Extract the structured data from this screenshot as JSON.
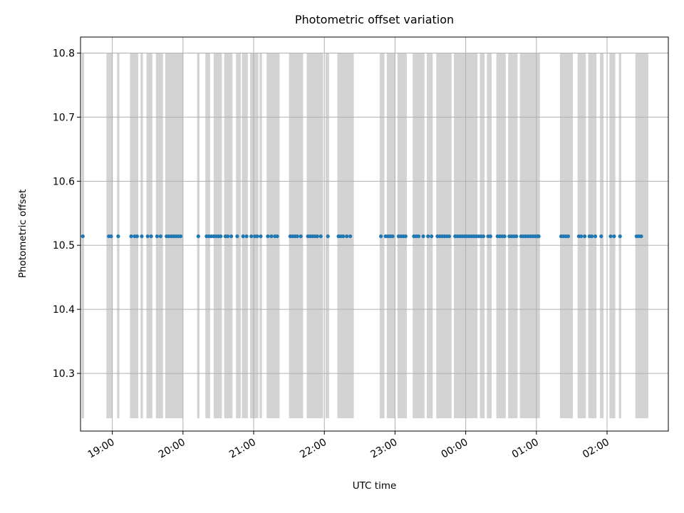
{
  "chart_data": {
    "type": "scatter",
    "title": "Photometric offset variation",
    "xlabel": "UTC time",
    "ylabel": "Photometric offset",
    "x_range": [
      "18:33",
      "02:52"
    ],
    "ylim": [
      10.21,
      10.825
    ],
    "y_ticks": [
      10.3,
      10.4,
      10.5,
      10.6,
      10.7,
      10.8
    ],
    "x_ticks": [
      "19:00",
      "20:00",
      "21:00",
      "22:00",
      "23:00",
      "00:00",
      "01:00",
      "02:00"
    ],
    "grid": true,
    "colors": {
      "points": "#1f77b4",
      "bands": "#d3d3d3",
      "grid": "#b0b0b0"
    },
    "shaded_intervals": {
      "y_range": [
        10.23,
        10.8
      ],
      "ranges": [
        [
          "18:34",
          "18:36"
        ],
        [
          "18:55",
          "19:00"
        ],
        [
          "19:04",
          "19:06"
        ],
        [
          "19:15",
          "19:22"
        ],
        [
          "19:24",
          "19:26"
        ],
        [
          "19:29",
          "19:34"
        ],
        [
          "19:37",
          "19:43"
        ],
        [
          "19:45",
          "20:00"
        ],
        [
          "20:12",
          "20:14"
        ],
        [
          "20:19",
          "20:23"
        ],
        [
          "20:26",
          "20:33"
        ],
        [
          "20:35",
          "20:42"
        ],
        [
          "20:45",
          "20:49"
        ],
        [
          "20:50",
          "20:55"
        ],
        [
          "20:57",
          "21:04"
        ],
        [
          "21:05",
          "21:07"
        ],
        [
          "21:11",
          "21:22"
        ],
        [
          "21:30",
          "21:42"
        ],
        [
          "21:45",
          "21:59"
        ],
        [
          "22:01",
          "22:04"
        ],
        [
          "22:11",
          "22:25"
        ],
        [
          "22:47",
          "22:51"
        ],
        [
          "22:53",
          "23:00"
        ],
        [
          "23:02",
          "23:10"
        ],
        [
          "23:15",
          "23:25"
        ],
        [
          "23:27",
          "23:32"
        ],
        [
          "23:35",
          "23:48"
        ],
        [
          "23:50",
          "00:10"
        ],
        [
          "00:12",
          "00:16"
        ],
        [
          "00:18",
          "00:22"
        ],
        [
          "00:26",
          "00:34"
        ],
        [
          "00:36",
          "00:44"
        ],
        [
          "00:46",
          "01:03"
        ],
        [
          "01:20",
          "01:31"
        ],
        [
          "01:35",
          "01:42"
        ],
        [
          "01:44",
          "01:51"
        ],
        [
          "01:54",
          "01:57"
        ],
        [
          "02:02",
          "02:07"
        ],
        [
          "02:10",
          "02:12"
        ],
        [
          "02:24",
          "02:35"
        ]
      ]
    },
    "series": [
      {
        "y": 10.514,
        "x": [
          "18:35",
          "18:57",
          "18:59",
          "19:05",
          "19:16",
          "19:19",
          "19:21",
          "19:25",
          "19:30",
          "19:33",
          "19:38",
          "19:41",
          "19:46",
          "19:48",
          "19:50",
          "19:52",
          "19:54",
          "19:56",
          "19:58",
          "20:13",
          "20:20",
          "20:22",
          "20:24",
          "20:26",
          "20:28",
          "20:30",
          "20:32",
          "20:36",
          "20:38",
          "20:41",
          "20:46",
          "20:51",
          "20:54",
          "20:58",
          "21:01",
          "21:03",
          "21:06",
          "21:12",
          "21:15",
          "21:18",
          "21:20",
          "21:31",
          "21:33",
          "21:35",
          "21:37",
          "21:40",
          "21:46",
          "21:48",
          "21:50",
          "21:52",
          "21:54",
          "21:57",
          "22:03",
          "22:12",
          "22:14",
          "22:16",
          "22:19",
          "22:22",
          "22:48",
          "22:52",
          "22:54",
          "22:56",
          "22:58",
          "23:03",
          "23:05",
          "23:07",
          "23:09",
          "23:16",
          "23:18",
          "23:20",
          "23:24",
          "23:28",
          "23:31",
          "23:36",
          "23:38",
          "23:40",
          "23:42",
          "23:44",
          "23:46",
          "23:51",
          "23:53",
          "23:55",
          "23:57",
          "23:59",
          "00:01",
          "00:03",
          "00:05",
          "00:07",
          "00:09",
          "00:11",
          "00:13",
          "00:15",
          "00:19",
          "00:21",
          "00:27",
          "00:29",
          "00:31",
          "00:33",
          "00:37",
          "00:39",
          "00:41",
          "00:43",
          "00:47",
          "00:49",
          "00:51",
          "00:53",
          "00:55",
          "00:57",
          "00:59",
          "01:01",
          "01:02",
          "01:21",
          "01:23",
          "01:25",
          "01:27",
          "01:36",
          "01:38",
          "01:41",
          "01:45",
          "01:47",
          "01:50",
          "01:55",
          "02:03",
          "02:06",
          "02:11",
          "02:25",
          "02:27",
          "02:29"
        ]
      }
    ]
  }
}
